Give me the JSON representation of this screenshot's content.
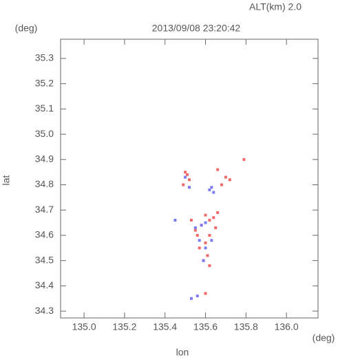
{
  "chart_data": {
    "type": "scatter",
    "header": "ALT(km) 2.0",
    "title": "2013/09/08 23:20:42",
    "y_unit": "(deg)",
    "x_unit": "(deg)",
    "xlabel": "lon",
    "ylabel": "lat",
    "xlim": [
      134.884,
      136.156
    ],
    "ylim": [
      34.273,
      35.376
    ],
    "xticks": [
      {
        "value": 135,
        "label": "135.0"
      },
      135.2,
      135.4,
      135.6,
      135.8,
      {
        "value": 136,
        "label": "136.0"
      }
    ],
    "yticks": [
      35.3,
      35.2,
      35.1,
      {
        "value": 35,
        "label": "35.0"
      },
      34.9,
      34.8,
      34.7,
      34.6,
      34.5,
      34.4,
      34.3
    ],
    "series": [
      {
        "color": "#f06a6a",
        "x": [
          135.5,
          135.52,
          135.49,
          135.51,
          135.7,
          135.72,
          135.68,
          135.66,
          135.6,
          135.62,
          135.64,
          135.66,
          135.58,
          135.55,
          135.62,
          135.65,
          135.6,
          135.57,
          135.53,
          135.61,
          135.59,
          135.62,
          135.56,
          135.6,
          135.79
        ],
        "y": [
          34.85,
          34.82,
          34.8,
          34.84,
          34.83,
          34.82,
          34.8,
          34.86,
          34.68,
          34.66,
          34.67,
          34.69,
          34.64,
          34.62,
          34.6,
          34.63,
          34.57,
          34.55,
          34.66,
          34.52,
          34.5,
          34.48,
          34.6,
          34.37,
          34.9
        ]
      },
      {
        "color": "#7b7bf0",
        "x": [
          135.5,
          135.52,
          135.63,
          135.62,
          135.64,
          135.58,
          135.6,
          135.55,
          135.57,
          135.63,
          135.6,
          135.59,
          135.45,
          135.53,
          135.56
        ],
        "y": [
          34.83,
          34.79,
          34.79,
          34.78,
          34.77,
          34.64,
          34.65,
          34.63,
          34.58,
          34.58,
          34.55,
          34.5,
          34.66,
          34.35,
          34.36
        ]
      }
    ]
  }
}
